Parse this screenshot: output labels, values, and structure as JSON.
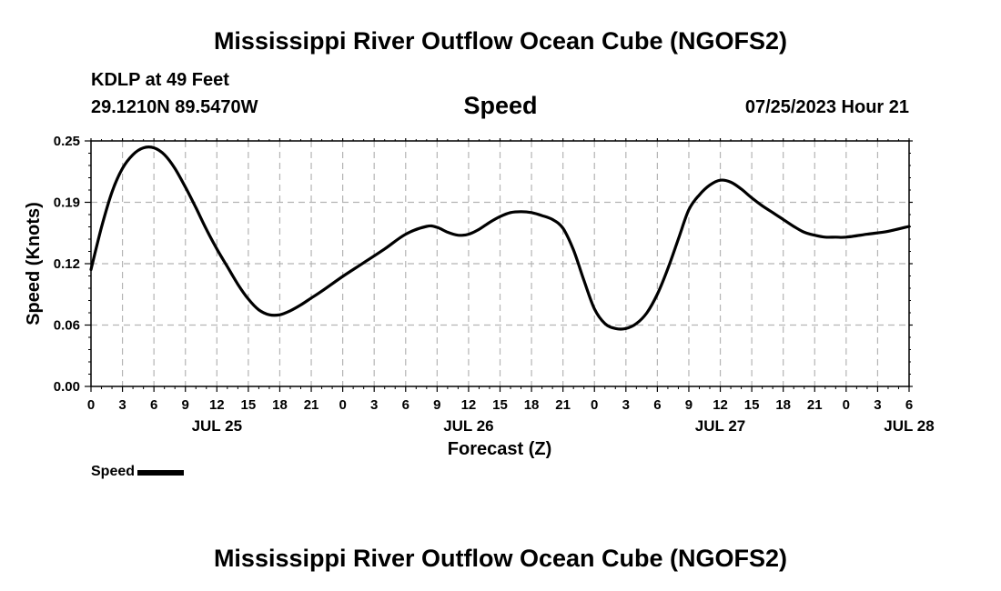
{
  "header": {
    "title": "Mississippi River Outflow Ocean Cube (NGOFS2)",
    "station": "KDLP at 49 Feet",
    "coordinates": "29.1210N  89.5470W",
    "variable": "Speed",
    "datetime": "07/25/2023 Hour 21"
  },
  "footer": {
    "title": "Mississippi River Outflow Ocean Cube (NGOFS2)"
  },
  "legend": {
    "label": "Speed"
  },
  "chart_data": {
    "type": "line",
    "title": "Speed",
    "xlabel": "Forecast (Z)",
    "ylabel": "Speed (Knots)",
    "xlim": [
      0,
      78
    ],
    "ylim": [
      0,
      0.25
    ],
    "y_ticks": [
      0,
      0.0625,
      0.125,
      0.1875,
      0.25
    ],
    "y_tick_labels": [
      "0.00",
      "0.06",
      "0.12",
      "0.19",
      "0.25"
    ],
    "x_ticks": [
      0,
      3,
      6,
      9,
      12,
      15,
      18,
      21,
      24,
      27,
      30,
      33,
      36,
      39,
      42,
      45,
      48,
      51,
      54,
      57,
      60,
      63,
      66,
      69,
      72,
      75,
      78
    ],
    "x_tick_labels": [
      "0",
      "3",
      "6",
      "9",
      "12",
      "15",
      "18",
      "21",
      "0",
      "3",
      "6",
      "9",
      "12",
      "15",
      "18",
      "21",
      "0",
      "3",
      "6",
      "9",
      "12",
      "15",
      "18",
      "21",
      "0",
      "3",
      "6"
    ],
    "date_labels": [
      {
        "x": 12,
        "label": "JUL 25"
      },
      {
        "x": 36,
        "label": "JUL 26"
      },
      {
        "x": 60,
        "label": "JUL 27"
      },
      {
        "x": 78,
        "label": "JUL 28"
      }
    ],
    "grid": true,
    "series": [
      {
        "name": "Speed",
        "x": [
          0,
          1,
          2,
          3,
          4,
          5,
          6,
          7,
          8,
          9,
          10,
          11,
          12,
          13,
          14,
          15,
          16,
          17,
          18,
          19,
          20,
          21,
          22,
          24,
          26,
          28,
          30,
          32,
          33,
          34,
          35,
          36,
          37,
          38,
          39,
          40,
          41,
          42,
          43,
          44,
          45,
          46,
          47,
          48,
          49,
          50,
          51,
          52,
          53,
          54,
          55,
          56,
          57,
          58,
          59,
          60,
          61,
          62,
          63,
          64,
          65,
          66,
          67,
          68,
          69,
          70,
          71,
          72,
          74,
          76,
          78
        ],
        "values": [
          0.119,
          0.162,
          0.198,
          0.222,
          0.236,
          0.243,
          0.243,
          0.236,
          0.222,
          0.203,
          0.182,
          0.16,
          0.14,
          0.122,
          0.104,
          0.089,
          0.078,
          0.073,
          0.073,
          0.077,
          0.083,
          0.09,
          0.097,
          0.112,
          0.126,
          0.14,
          0.155,
          0.163,
          0.162,
          0.157,
          0.154,
          0.155,
          0.16,
          0.167,
          0.173,
          0.177,
          0.178,
          0.177,
          0.174,
          0.17,
          0.161,
          0.139,
          0.108,
          0.079,
          0.064,
          0.059,
          0.059,
          0.064,
          0.075,
          0.094,
          0.12,
          0.15,
          0.18,
          0.195,
          0.205,
          0.21,
          0.208,
          0.201,
          0.192,
          0.184,
          0.177,
          0.17,
          0.163,
          0.157,
          0.154,
          0.152,
          0.152,
          0.152,
          0.155,
          0.158,
          0.163
        ]
      }
    ]
  }
}
